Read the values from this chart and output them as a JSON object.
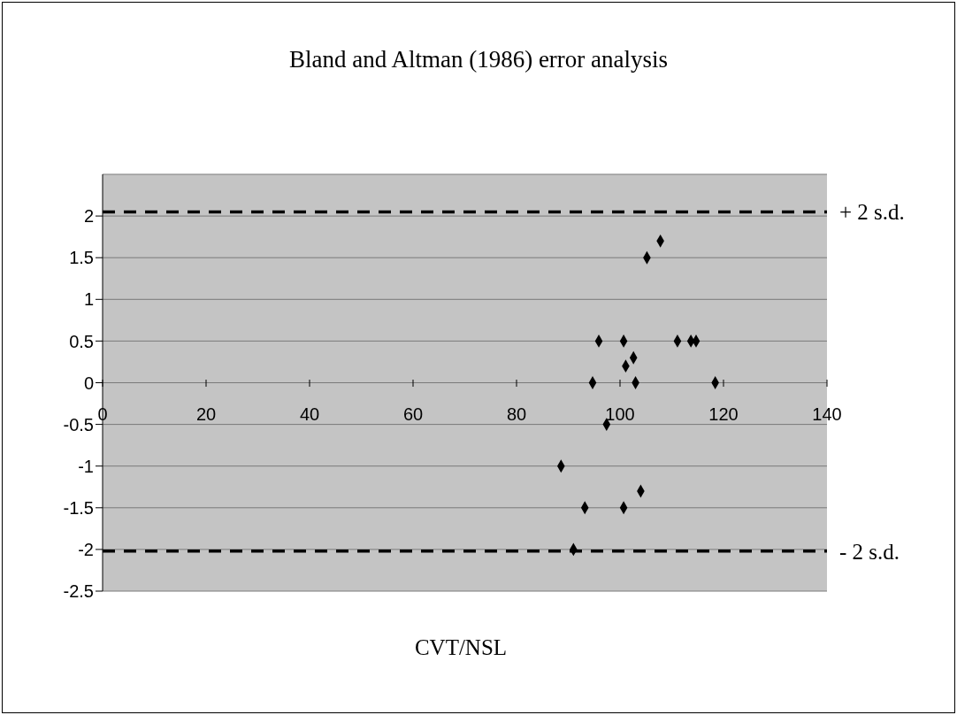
{
  "chart_data": {
    "type": "scatter",
    "title": "Bland and Altman (1986) error analysis",
    "xlabel": "CVT/NSL",
    "x": [
      107.8,
      105.2,
      95.9,
      100.7,
      111.1,
      113.7,
      114.7,
      102.6,
      101.1,
      94.7,
      103,
      118.4,
      97.4,
      88.6,
      104,
      93.2,
      100.7,
      91
    ],
    "series": [
      {
        "color": "#000000",
        "values": [
          1.7,
          1.5,
          0.5,
          0.5,
          0.5,
          0.5,
          0.5,
          0.3,
          0.2,
          0,
          0,
          0,
          -0.5,
          -1,
          -1.3,
          -1.5,
          -1.5,
          -2
        ]
      }
    ],
    "xlim": [
      0,
      140
    ],
    "xticks": [
      0,
      20,
      40,
      60,
      80,
      100,
      120,
      140
    ],
    "ylim": [
      -2.5,
      2.5
    ],
    "yticks": [
      -2.5,
      -2,
      -1.5,
      -1,
      -0.5,
      0,
      0.5,
      1,
      1.5,
      2
    ],
    "ref_lines": [
      {
        "axis": "y",
        "value": 2.05,
        "label": "+ 2 s.d.",
        "color": "#000000",
        "line_style": "dashed"
      },
      {
        "axis": "y",
        "value": -2.02,
        "label": "- 2 s.d.",
        "color": "#000000",
        "line_style": "dashed"
      }
    ],
    "grid": "y",
    "marker": "diamond"
  }
}
